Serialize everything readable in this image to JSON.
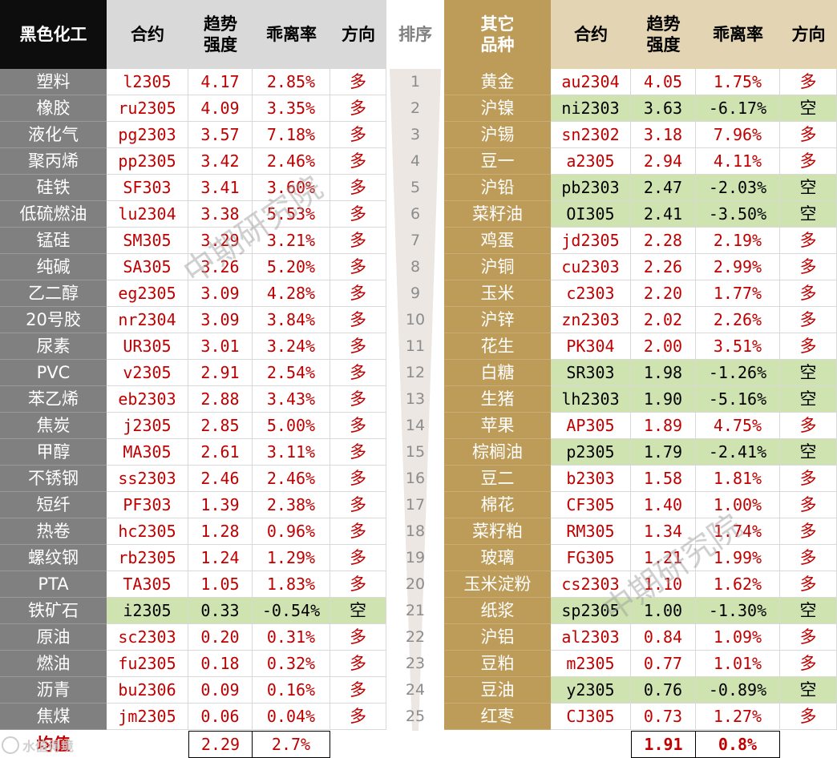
{
  "headers": {
    "left_category": "黑色化工",
    "contract": "合约",
    "trend_line1": "趋势",
    "trend_line2": "强度",
    "deviation": "乖离率",
    "direction": "方向",
    "rank": "排序",
    "right_category_line1": "其它",
    "right_category_line2": "品种"
  },
  "average_label": "均值",
  "left_average": {
    "trend": "2.29",
    "deviation": "2.7%"
  },
  "right_average": {
    "trend": "1.91",
    "deviation": "0.8%"
  },
  "watermark": "中期研究院",
  "logo_text": "水值得境",
  "colors": {
    "green_highlight": "#cfe3b1",
    "red_text": "#c00000",
    "left_header_bg": "#0d0d0d",
    "right_header_bg": "#bd9c5a"
  },
  "rows": [
    {
      "rank": "1",
      "left": {
        "name": "塑料",
        "contract": "l2305",
        "trend": "4.17",
        "deviation": "2.85%",
        "direction": "多"
      },
      "right": {
        "name": "黄金",
        "contract": "au2304",
        "trend": "4.05",
        "deviation": "1.75%",
        "direction": "多"
      }
    },
    {
      "rank": "2",
      "left": {
        "name": "橡胶",
        "contract": "ru2305",
        "trend": "4.09",
        "deviation": "3.35%",
        "direction": "多"
      },
      "right": {
        "name": "沪镍",
        "contract": "ni2303",
        "trend": "3.63",
        "deviation": "-6.17%",
        "direction": "空"
      }
    },
    {
      "rank": "3",
      "left": {
        "name": "液化气",
        "contract": "pg2303",
        "trend": "3.57",
        "deviation": "7.18%",
        "direction": "多"
      },
      "right": {
        "name": "沪锡",
        "contract": "sn2302",
        "trend": "3.18",
        "deviation": "7.96%",
        "direction": "多"
      }
    },
    {
      "rank": "4",
      "left": {
        "name": "聚丙烯",
        "contract": "pp2305",
        "trend": "3.42",
        "deviation": "2.46%",
        "direction": "多"
      },
      "right": {
        "name": "豆一",
        "contract": "a2305",
        "trend": "2.94",
        "deviation": "4.11%",
        "direction": "多"
      }
    },
    {
      "rank": "5",
      "left": {
        "name": "硅铁",
        "contract": "SF303",
        "trend": "3.41",
        "deviation": "3.60%",
        "direction": "多"
      },
      "right": {
        "name": "沪铅",
        "contract": "pb2303",
        "trend": "2.47",
        "deviation": "-2.03%",
        "direction": "空"
      }
    },
    {
      "rank": "6",
      "left": {
        "name": "低硫燃油",
        "contract": "lu2304",
        "trend": "3.38",
        "deviation": "5.53%",
        "direction": "多"
      },
      "right": {
        "name": "菜籽油",
        "contract": "OI305",
        "trend": "2.41",
        "deviation": "-3.50%",
        "direction": "空"
      }
    },
    {
      "rank": "7",
      "left": {
        "name": "锰硅",
        "contract": "SM305",
        "trend": "3.29",
        "deviation": "3.21%",
        "direction": "多"
      },
      "right": {
        "name": "鸡蛋",
        "contract": "jd2305",
        "trend": "2.28",
        "deviation": "2.19%",
        "direction": "多"
      }
    },
    {
      "rank": "8",
      "left": {
        "name": "纯碱",
        "contract": "SA305",
        "trend": "3.26",
        "deviation": "5.20%",
        "direction": "多"
      },
      "right": {
        "name": "沪铜",
        "contract": "cu2303",
        "trend": "2.26",
        "deviation": "2.99%",
        "direction": "多"
      }
    },
    {
      "rank": "9",
      "left": {
        "name": "乙二醇",
        "contract": "eg2305",
        "trend": "3.09",
        "deviation": "4.28%",
        "direction": "多"
      },
      "right": {
        "name": "玉米",
        "contract": "c2303",
        "trend": "2.20",
        "deviation": "1.77%",
        "direction": "多"
      }
    },
    {
      "rank": "10",
      "left": {
        "name": "20号胶",
        "contract": "nr2304",
        "trend": "3.09",
        "deviation": "3.84%",
        "direction": "多"
      },
      "right": {
        "name": "沪锌",
        "contract": "zn2303",
        "trend": "2.02",
        "deviation": "2.26%",
        "direction": "多"
      }
    },
    {
      "rank": "11",
      "left": {
        "name": "尿素",
        "contract": "UR305",
        "trend": "3.01",
        "deviation": "3.24%",
        "direction": "多"
      },
      "right": {
        "name": "花生",
        "contract": "PK304",
        "trend": "2.00",
        "deviation": "3.51%",
        "direction": "多"
      }
    },
    {
      "rank": "12",
      "left": {
        "name": "PVC",
        "contract": "v2305",
        "trend": "2.91",
        "deviation": "2.54%",
        "direction": "多"
      },
      "right": {
        "name": "白糖",
        "contract": "SR303",
        "trend": "1.98",
        "deviation": "-1.26%",
        "direction": "空"
      }
    },
    {
      "rank": "13",
      "left": {
        "name": "苯乙烯",
        "contract": "eb2303",
        "trend": "2.88",
        "deviation": "3.43%",
        "direction": "多"
      },
      "right": {
        "name": "生猪",
        "contract": "lh2303",
        "trend": "1.90",
        "deviation": "-5.16%",
        "direction": "空"
      }
    },
    {
      "rank": "14",
      "left": {
        "name": "焦炭",
        "contract": "j2305",
        "trend": "2.85",
        "deviation": "5.00%",
        "direction": "多"
      },
      "right": {
        "name": "苹果",
        "contract": "AP305",
        "trend": "1.89",
        "deviation": "4.75%",
        "direction": "多"
      }
    },
    {
      "rank": "15",
      "left": {
        "name": "甲醇",
        "contract": "MA305",
        "trend": "2.61",
        "deviation": "3.11%",
        "direction": "多"
      },
      "right": {
        "name": "棕榈油",
        "contract": "p2305",
        "trend": "1.79",
        "deviation": "-2.41%",
        "direction": "空"
      }
    },
    {
      "rank": "16",
      "left": {
        "name": "不锈钢",
        "contract": "ss2303",
        "trend": "2.46",
        "deviation": "2.46%",
        "direction": "多"
      },
      "right": {
        "name": "豆二",
        "contract": "b2303",
        "trend": "1.58",
        "deviation": "1.81%",
        "direction": "多"
      }
    },
    {
      "rank": "17",
      "left": {
        "name": "短纤",
        "contract": "PF303",
        "trend": "1.39",
        "deviation": "2.38%",
        "direction": "多"
      },
      "right": {
        "name": "棉花",
        "contract": "CF305",
        "trend": "1.40",
        "deviation": "1.00%",
        "direction": "多"
      }
    },
    {
      "rank": "18",
      "left": {
        "name": "热卷",
        "contract": "hc2305",
        "trend": "1.28",
        "deviation": "0.96%",
        "direction": "多"
      },
      "right": {
        "name": "菜籽粕",
        "contract": "RM305",
        "trend": "1.34",
        "deviation": "1.74%",
        "direction": "多"
      }
    },
    {
      "rank": "19",
      "left": {
        "name": "螺纹钢",
        "contract": "rb2305",
        "trend": "1.24",
        "deviation": "1.29%",
        "direction": "多"
      },
      "right": {
        "name": "玻璃",
        "contract": "FG305",
        "trend": "1.21",
        "deviation": "1.99%",
        "direction": "多"
      }
    },
    {
      "rank": "20",
      "left": {
        "name": "PTA",
        "contract": "TA305",
        "trend": "1.05",
        "deviation": "1.83%",
        "direction": "多"
      },
      "right": {
        "name": "玉米淀粉",
        "contract": "cs2303",
        "trend": "1.10",
        "deviation": "1.62%",
        "direction": "多"
      }
    },
    {
      "rank": "21",
      "left": {
        "name": "铁矿石",
        "contract": "i2305",
        "trend": "0.33",
        "deviation": "-0.54%",
        "direction": "空"
      },
      "right": {
        "name": "纸浆",
        "contract": "sp2305",
        "trend": "1.00",
        "deviation": "-1.30%",
        "direction": "空"
      }
    },
    {
      "rank": "22",
      "left": {
        "name": "原油",
        "contract": "sc2303",
        "trend": "0.20",
        "deviation": "0.31%",
        "direction": "多"
      },
      "right": {
        "name": "沪铝",
        "contract": "al2303",
        "trend": "0.84",
        "deviation": "1.09%",
        "direction": "多"
      }
    },
    {
      "rank": "23",
      "left": {
        "name": "燃油",
        "contract": "fu2305",
        "trend": "0.18",
        "deviation": "0.32%",
        "direction": "多"
      },
      "right": {
        "name": "豆粕",
        "contract": "m2305",
        "trend": "0.77",
        "deviation": "1.01%",
        "direction": "多"
      }
    },
    {
      "rank": "24",
      "left": {
        "name": "沥青",
        "contract": "bu2306",
        "trend": "0.09",
        "deviation": "0.16%",
        "direction": "多"
      },
      "right": {
        "name": "豆油",
        "contract": "y2305",
        "trend": "0.76",
        "deviation": "-0.89%",
        "direction": "空"
      }
    },
    {
      "rank": "25",
      "left": {
        "name": "焦煤",
        "contract": "jm2305",
        "trend": "0.06",
        "deviation": "0.04%",
        "direction": "多"
      },
      "right": {
        "name": "红枣",
        "contract": "CJ305",
        "trend": "0.73",
        "deviation": "1.27%",
        "direction": "多"
      }
    }
  ]
}
